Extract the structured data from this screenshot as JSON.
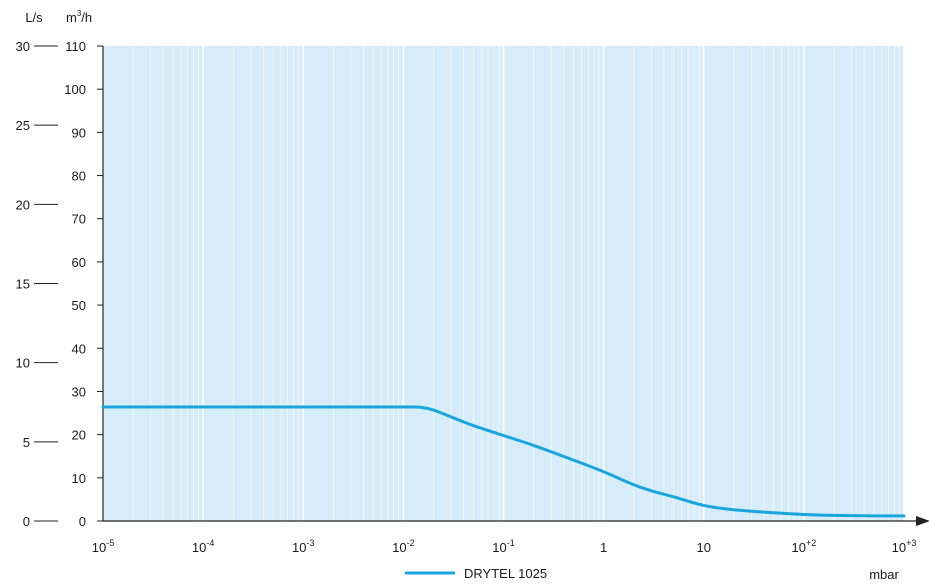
{
  "chart_data": {
    "type": "line",
    "x_scale": "log",
    "xlim": [
      1e-05,
      1000
    ],
    "ylim": [
      0,
      110
    ],
    "y2lim": [
      0,
      30
    ],
    "xlabel": "mbar",
    "ylabel": "m3/h",
    "y2label": "L/s",
    "grid": true,
    "legend_position": "bottom-center",
    "x_tick_labels": [
      {
        "base": "10",
        "exp": "-5"
      },
      {
        "base": "10",
        "exp": "-4"
      },
      {
        "base": "10",
        "exp": "-3"
      },
      {
        "base": "10",
        "exp": "-2"
      },
      {
        "base": "10",
        "exp": "-1"
      },
      {
        "base": "1",
        "exp": ""
      },
      {
        "base": "10",
        "exp": ""
      },
      {
        "base": "10",
        "exp": "+2"
      },
      {
        "base": "10",
        "exp": "+3"
      }
    ],
    "y_ticks": [
      0,
      10,
      20,
      30,
      40,
      50,
      60,
      70,
      80,
      90,
      100,
      110
    ],
    "y2_ticks": [
      0,
      5,
      10,
      15,
      20,
      25,
      30
    ],
    "series": [
      {
        "name": "DRYTEL 1025",
        "color": "#1aa6dc",
        "x": [
          1e-05,
          0.0001,
          0.001,
          0.01,
          0.015,
          0.02,
          0.03,
          0.05,
          0.1,
          0.2,
          0.5,
          1,
          2,
          3,
          5,
          10,
          20,
          50,
          100,
          200,
          500,
          1000
        ],
        "y": [
          26.4,
          26.4,
          26.4,
          26.4,
          26.3,
          25.7,
          24.1,
          22.1,
          19.8,
          17.5,
          14.1,
          11.4,
          8.4,
          7.0,
          5.6,
          3.6,
          2.6,
          1.9,
          1.5,
          1.3,
          1.2,
          1.2
        ]
      }
    ]
  },
  "labels": {
    "xlabel": "mbar",
    "ylabel_base": "m",
    "ylabel_sup": "3",
    "ylabel_rest": "/h",
    "y2label": "L/s",
    "legend_label": "DRYTEL 1025"
  },
  "colors": {
    "plot_background": "#d6ecf9",
    "grid_line": "#ffffff",
    "axis": "#222222",
    "series": "#1aa6dc"
  }
}
